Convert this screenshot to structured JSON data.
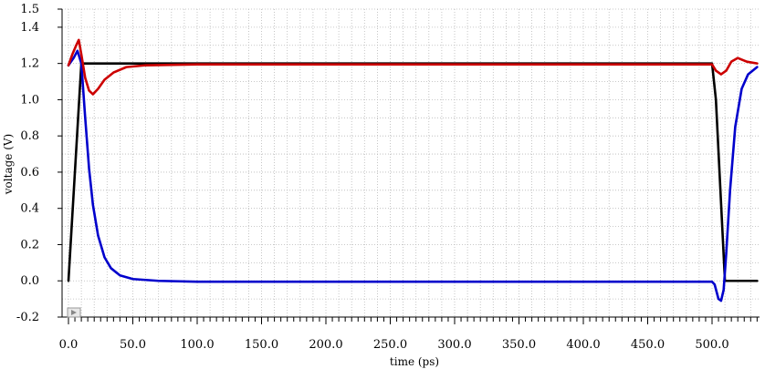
{
  "chart_data": {
    "type": "line",
    "title": "",
    "xlabel": "time (ps)",
    "ylabel": "voltage (V)",
    "xlim": [
      0,
      535
    ],
    "ylim": [
      -0.2,
      1.5
    ],
    "xticks": [
      {
        "value": 0,
        "label": "0.0"
      },
      {
        "value": 50,
        "label": "50.0"
      },
      {
        "value": 100,
        "label": "100.0"
      },
      {
        "value": 150,
        "label": "150.0"
      },
      {
        "value": 200,
        "label": "200.0"
      },
      {
        "value": 250,
        "label": "250.0"
      },
      {
        "value": 300,
        "label": "300.0"
      },
      {
        "value": 350,
        "label": "350.0"
      },
      {
        "value": 400,
        "label": "400.0"
      },
      {
        "value": 450,
        "label": "450.0"
      },
      {
        "value": 500,
        "label": "500.0"
      }
    ],
    "yticks": [
      {
        "value": -0.2,
        "label": "-0.2"
      },
      {
        "value": 0.0,
        "label": "0.0"
      },
      {
        "value": 0.2,
        "label": "0.2"
      },
      {
        "value": 0.4,
        "label": "0.4"
      },
      {
        "value": 0.6,
        "label": "0.6"
      },
      {
        "value": 0.8,
        "label": "0.8"
      },
      {
        "value": 1.0,
        "label": "1.0"
      },
      {
        "value": 1.2,
        "label": "1.2"
      },
      {
        "value": 1.4,
        "label": "1.4"
      },
      {
        "value": 1.5,
        "label": "1.5"
      }
    ],
    "grid": true,
    "series": [
      {
        "color": "#000000",
        "points": [
          [
            0,
            0
          ],
          [
            10,
            1.2
          ],
          [
            100,
            1.2
          ],
          [
            500,
            1.2
          ],
          [
            503,
            1.0
          ],
          [
            510,
            0.0
          ],
          [
            535,
            0.0
          ]
        ]
      },
      {
        "color": "#0000cc",
        "points": [
          [
            0,
            1.19
          ],
          [
            4,
            1.23
          ],
          [
            7,
            1.27
          ],
          [
            10,
            1.2
          ],
          [
            13,
            0.9
          ],
          [
            16,
            0.62
          ],
          [
            19,
            0.42
          ],
          [
            23,
            0.25
          ],
          [
            28,
            0.13
          ],
          [
            33,
            0.07
          ],
          [
            40,
            0.03
          ],
          [
            50,
            0.01
          ],
          [
            70,
            0.0
          ],
          [
            100,
            -0.005
          ],
          [
            300,
            -0.005
          ],
          [
            500,
            -0.005
          ],
          [
            502,
            -0.02
          ],
          [
            505,
            -0.1
          ],
          [
            507,
            -0.11
          ],
          [
            509,
            -0.05
          ],
          [
            511,
            0.15
          ],
          [
            514,
            0.5
          ],
          [
            518,
            0.85
          ],
          [
            523,
            1.06
          ],
          [
            528,
            1.14
          ],
          [
            535,
            1.18
          ]
        ]
      },
      {
        "color": "#cc0000",
        "points": [
          [
            0,
            1.19
          ],
          [
            3,
            1.25
          ],
          [
            6,
            1.3
          ],
          [
            8,
            1.33
          ],
          [
            10,
            1.25
          ],
          [
            13,
            1.12
          ],
          [
            16,
            1.05
          ],
          [
            19,
            1.03
          ],
          [
            23,
            1.06
          ],
          [
            28,
            1.11
          ],
          [
            35,
            1.15
          ],
          [
            45,
            1.18
          ],
          [
            60,
            1.19
          ],
          [
            100,
            1.195
          ],
          [
            300,
            1.195
          ],
          [
            500,
            1.195
          ],
          [
            503,
            1.16
          ],
          [
            507,
            1.14
          ],
          [
            511,
            1.16
          ],
          [
            515,
            1.21
          ],
          [
            520,
            1.23
          ],
          [
            527,
            1.21
          ],
          [
            535,
            1.2
          ]
        ]
      }
    ]
  }
}
